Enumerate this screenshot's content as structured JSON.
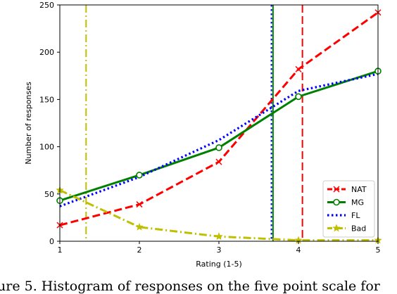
{
  "chart_data": {
    "type": "line",
    "x": [
      1,
      2,
      3,
      4,
      5
    ],
    "series": [
      {
        "name": "NAT",
        "values": [
          17,
          39,
          84,
          182,
          242
        ],
        "color": "#ff0000",
        "style": "dashed",
        "marker": "x"
      },
      {
        "name": "MG",
        "values": [
          43,
          70,
          99,
          153,
          180
        ],
        "color": "#008000",
        "style": "solid",
        "marker": "circle"
      },
      {
        "name": "FL",
        "values": [
          37,
          68,
          107,
          159,
          177
        ],
        "color": "#0000ff",
        "style": "dotted",
        "marker": "none"
      },
      {
        "name": "Bad",
        "values": [
          54,
          15,
          5,
          1,
          1
        ],
        "color": "#bfbf00",
        "style": "dashdot",
        "marker": "star"
      }
    ],
    "vlines": [
      {
        "x": 1.33,
        "color": "#bfbf00",
        "style": "dashdot"
      },
      {
        "x": 3.66,
        "color": "#0000ff",
        "style": "dotted"
      },
      {
        "x": 3.68,
        "color": "#008000",
        "style": "solid"
      },
      {
        "x": 4.05,
        "color": "#ff0000",
        "style": "dashed"
      }
    ],
    "xlabel": "Rating (1-5)",
    "ylabel": "Number of responses",
    "xlim": [
      1,
      5
    ],
    "ylim": [
      0,
      250
    ],
    "xticks": [
      "1",
      "2",
      "3",
      "4",
      "5"
    ],
    "yticks": [
      "0",
      "50",
      "100",
      "150",
      "200",
      "250"
    ],
    "grid": false,
    "legend_position": "bottom-right"
  },
  "caption": "ure 5. Histogram of responses on the five point scale for"
}
